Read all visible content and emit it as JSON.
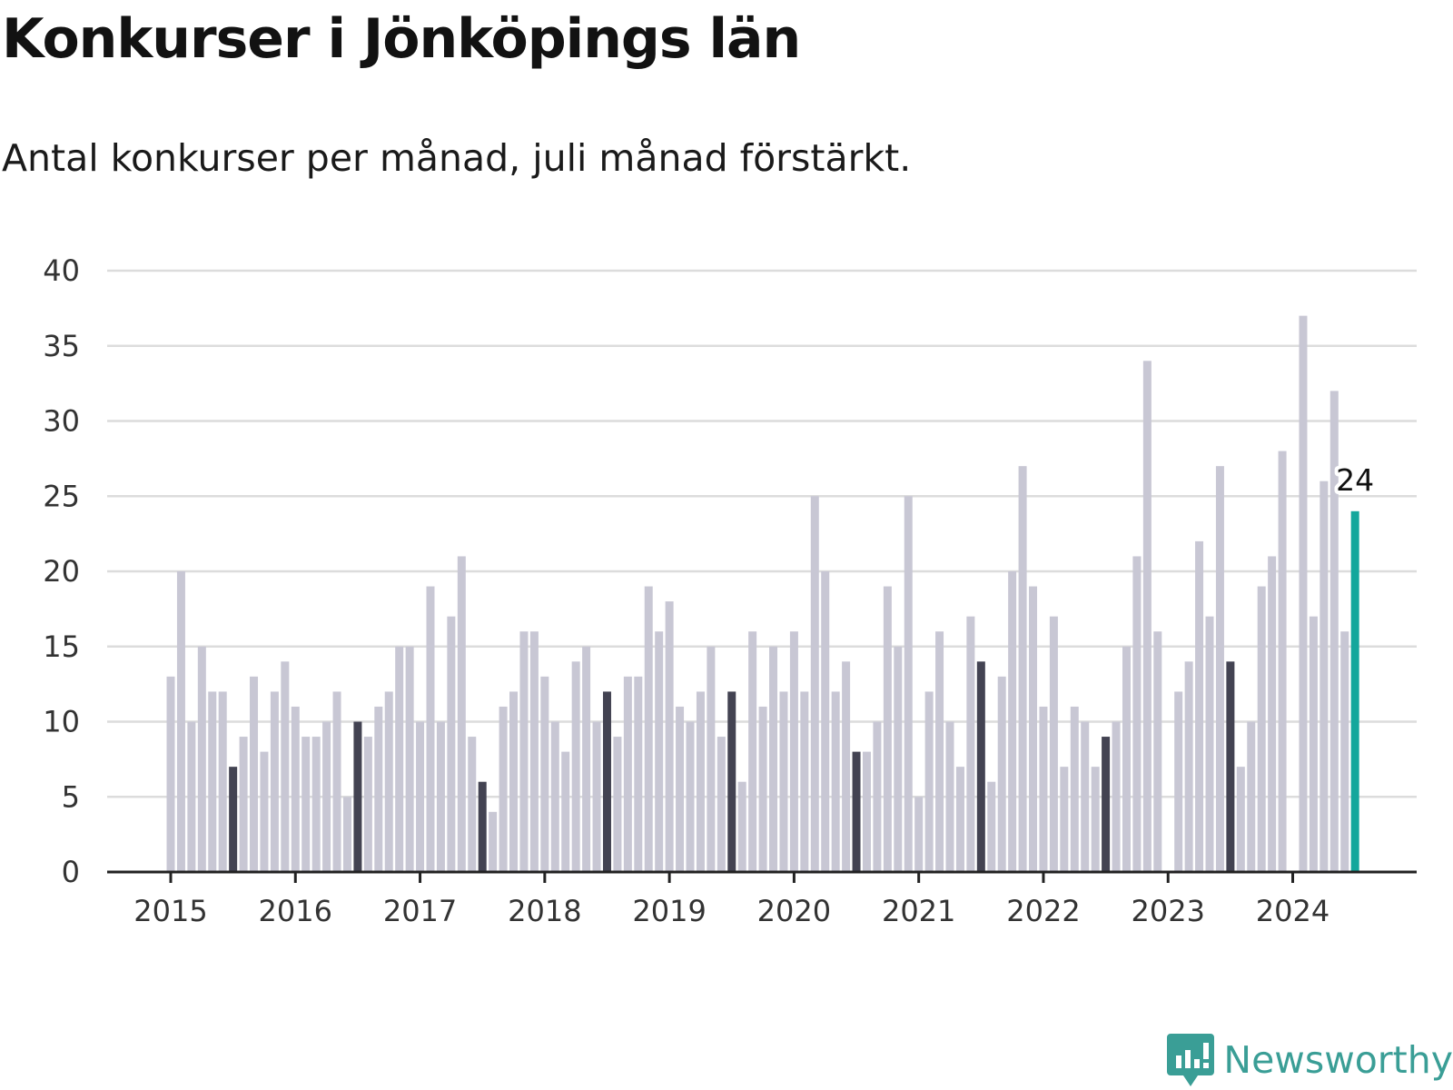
{
  "title": "Konkurser i Jönköpings län",
  "subtitle": "Antal konkurser per månad, juli månad förstärkt.",
  "brand": "Newsworthy",
  "colors": {
    "bar": "#c8c7d4",
    "highlight": "#434352",
    "latest": "#13a79c",
    "grid": "#dcdcdc",
    "axis": "#222222",
    "brand": "#3a9e96"
  },
  "chart_data": {
    "type": "bar",
    "title": "Konkurser i Jönköpings län",
    "subtitle": "Antal konkurser per månad, juli månad förstärkt.",
    "xlabel": "",
    "ylabel": "",
    "ylim": [
      0,
      40
    ],
    "yticks": [
      0,
      5,
      10,
      15,
      20,
      25,
      30,
      35,
      40
    ],
    "xtick_labels": [
      "2015",
      "2016",
      "2017",
      "2018",
      "2019",
      "2020",
      "2021",
      "2022",
      "2023",
      "2024"
    ],
    "start": "2015-01",
    "end": "2024-07",
    "highlight_month": "juli",
    "grid": true,
    "values": [
      13,
      20,
      10,
      15,
      12,
      12,
      7,
      9,
      13,
      8,
      12,
      14,
      11,
      9,
      9,
      10,
      12,
      5,
      10,
      9,
      11,
      12,
      15,
      15,
      10,
      19,
      10,
      17,
      21,
      9,
      6,
      4,
      11,
      12,
      16,
      16,
      13,
      10,
      8,
      14,
      15,
      10,
      12,
      9,
      13,
      13,
      19,
      16,
      18,
      11,
      10,
      12,
      15,
      9,
      12,
      6,
      16,
      11,
      15,
      12,
      16,
      12,
      25,
      20,
      12,
      14,
      8,
      8,
      10,
      19,
      15,
      25,
      5,
      12,
      16,
      10,
      7,
      17,
      14,
      6,
      13,
      20,
      27,
      19,
      11,
      17,
      7,
      11,
      10,
      7,
      9,
      10,
      15,
      21,
      34,
      16,
      0,
      12,
      14,
      22,
      17,
      27,
      14,
      7,
      10,
      19,
      21,
      28,
      0,
      37,
      17,
      26,
      32,
      16,
      24
    ],
    "annotation": {
      "label": "24",
      "month": "2024-07"
    }
  }
}
